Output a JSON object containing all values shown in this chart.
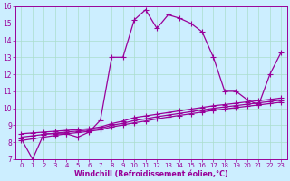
{
  "x": [
    0,
    1,
    2,
    3,
    4,
    5,
    6,
    7,
    8,
    9,
    10,
    11,
    12,
    13,
    14,
    15,
    16,
    17,
    18,
    19,
    20,
    21,
    22,
    23
  ],
  "line1": [
    8.2,
    7.0,
    8.5,
    8.5,
    8.5,
    8.3,
    8.6,
    9.3,
    13.0,
    13.0,
    15.2,
    15.8,
    14.7,
    15.5,
    15.3,
    15.0,
    14.5,
    13.0,
    11.0,
    11.0,
    10.5,
    10.2,
    12.0,
    13.3
  ],
  "line2": [
    8.5,
    8.55,
    8.6,
    8.65,
    8.7,
    8.75,
    8.8,
    8.9,
    9.1,
    9.25,
    9.45,
    9.55,
    9.65,
    9.75,
    9.85,
    9.95,
    10.05,
    10.15,
    10.22,
    10.3,
    10.38,
    10.45,
    10.52,
    10.6
  ],
  "line3": [
    8.3,
    8.38,
    8.46,
    8.54,
    8.6,
    8.66,
    8.72,
    8.82,
    9.0,
    9.12,
    9.28,
    9.38,
    9.5,
    9.6,
    9.7,
    9.8,
    9.9,
    10.0,
    10.08,
    10.16,
    10.24,
    10.32,
    10.4,
    10.48
  ],
  "line4": [
    8.1,
    8.2,
    8.3,
    8.4,
    8.5,
    8.57,
    8.64,
    8.74,
    8.9,
    9.02,
    9.15,
    9.25,
    9.38,
    9.48,
    9.58,
    9.68,
    9.78,
    9.88,
    9.96,
    10.04,
    10.12,
    10.2,
    10.28,
    10.36
  ],
  "line_color": "#990099",
  "bg_color": "#cceeff",
  "grid_color": "#aaddcc",
  "xlabel": "Windchill (Refroidissement éolien,°C)",
  "ylim": [
    7,
    16
  ],
  "xlim": [
    -0.5,
    23.5
  ],
  "yticks": [
    7,
    8,
    9,
    10,
    11,
    12,
    13,
    14,
    15,
    16
  ],
  "xticks": [
    0,
    1,
    2,
    3,
    4,
    5,
    6,
    7,
    8,
    9,
    10,
    11,
    12,
    13,
    14,
    15,
    16,
    17,
    18,
    19,
    20,
    21,
    22,
    23
  ]
}
